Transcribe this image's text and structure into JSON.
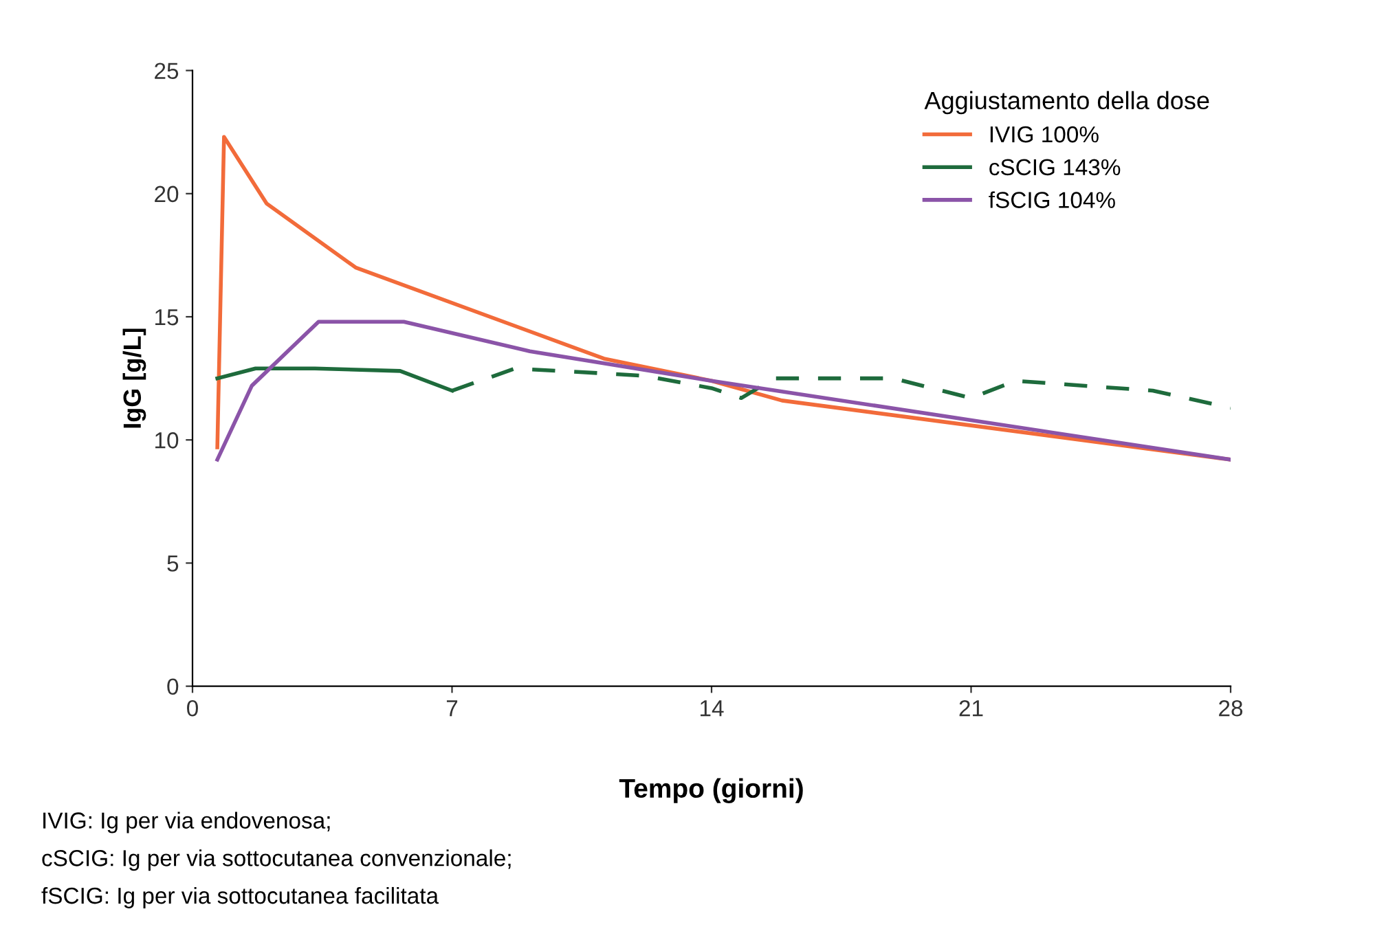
{
  "chart_data": {
    "type": "line",
    "xlabel": "Tempo (giorni)",
    "ylabel": "IgG [g/L]",
    "legend_title": "Aggiustamento della dose",
    "legend": "top right",
    "grid": false,
    "xlim": [
      0,
      28
    ],
    "xticks": [
      0,
      7,
      14,
      21,
      28
    ],
    "ylim": [
      0,
      25
    ],
    "yticks": [
      0,
      5,
      10,
      15,
      20,
      25
    ],
    "series": [
      {
        "name": "IVIG 100%",
        "color": "#f26b3a",
        "line_style": "solid",
        "x": [
          0.67,
          0.85,
          2.0,
          4.4,
          11.1,
          14.0,
          15.9,
          28
        ],
        "values": [
          9.7,
          22.3,
          19.6,
          17.0,
          13.3,
          12.4,
          11.6,
          9.2
        ]
      },
      {
        "name": "cSCIG 143%",
        "color": "#1e6b3c",
        "line_style": "solid",
        "x": [
          0.67,
          1.7,
          3.3,
          5.6,
          7.0
        ],
        "values": [
          12.5,
          12.9,
          12.9,
          12.8,
          12.0
        ]
      },
      {
        "color": "#1e6b3c",
        "line_style": "dashed",
        "x": [
          7.0,
          8.7,
          11.1,
          12.2,
          14.0,
          14.8,
          15.7,
          18.9,
          21.0,
          22.2,
          25.9,
          28
        ],
        "values": [
          12.0,
          12.9,
          12.7,
          12.6,
          12.1,
          11.7,
          12.5,
          12.5,
          11.7,
          12.4,
          12.0,
          11.3
        ]
      },
      {
        "name": "fSCIG 104%",
        "color": "#8b54a8",
        "line_style": "solid",
        "x": [
          0.67,
          1.6,
          3.4,
          5.7,
          9.1,
          14.0,
          28
        ],
        "values": [
          9.2,
          12.2,
          14.8,
          14.8,
          13.6,
          12.4,
          9.2
        ]
      }
    ],
    "annotations": [
      "IVIG: Ig per via endovenosa;",
      "cSCIG: Ig per via sottocutanea convenzionale;",
      "fSCIG: Ig per via sottocutanea facilitata"
    ]
  }
}
